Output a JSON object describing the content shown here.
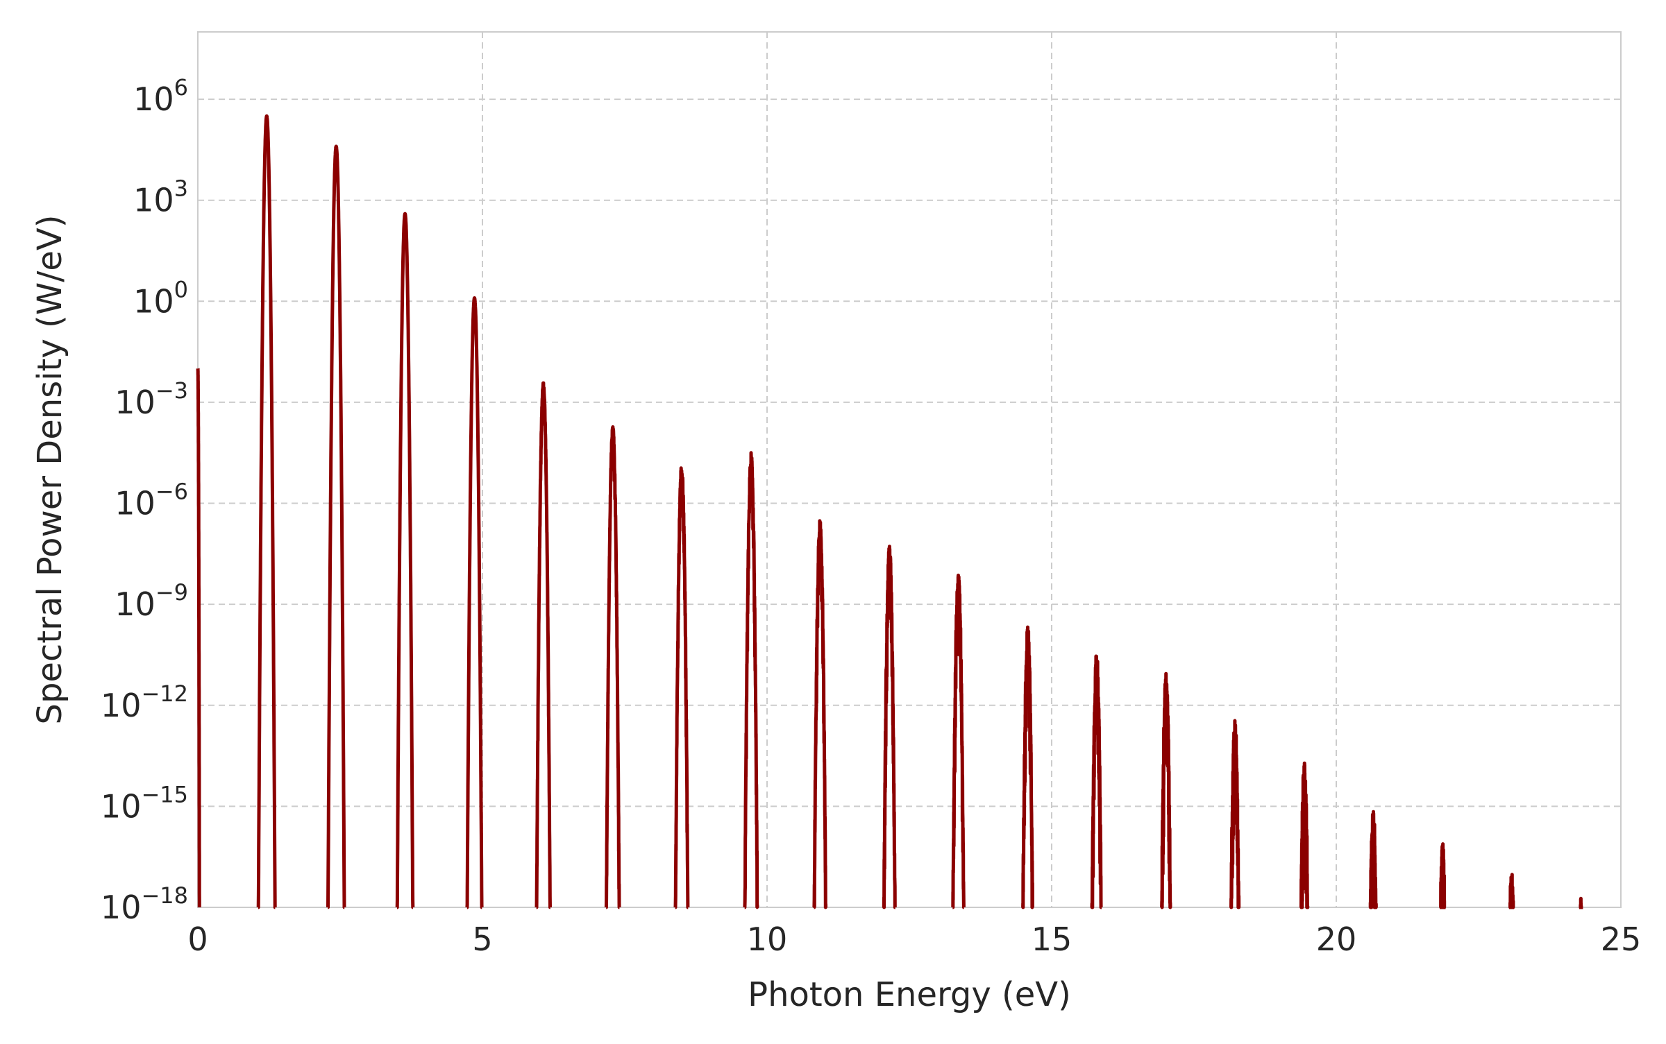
{
  "chart_data": {
    "type": "line",
    "xlabel": "Photon Energy (eV)",
    "ylabel": "Spectral Power Density (W/eV)",
    "xlim": [
      0,
      25
    ],
    "ylim_log10": [
      -18,
      8
    ],
    "y_scale": "log",
    "grid": true,
    "grid_style": "dashed",
    "line_color": "#8b0000",
    "x_ticks": [
      0,
      5,
      10,
      15,
      20,
      25
    ],
    "x_tick_labels": [
      "0",
      "5",
      "10",
      "15",
      "20",
      "25"
    ],
    "y_tick_exponents": [
      -18,
      -15,
      -12,
      -9,
      -6,
      -3,
      0,
      3,
      6
    ],
    "y_tick_labels": [
      {
        "base": "10",
        "exp": "−18"
      },
      {
        "base": "10",
        "exp": "−15"
      },
      {
        "base": "10",
        "exp": "−12"
      },
      {
        "base": "10",
        "exp": "−9"
      },
      {
        "base": "10",
        "exp": "−6"
      },
      {
        "base": "10",
        "exp": "−3"
      },
      {
        "base": "10",
        "exp": "0"
      },
      {
        "base": "10",
        "exp": "3"
      },
      {
        "base": "10",
        "exp": "6"
      }
    ],
    "series": [
      {
        "harmonic_spacing_eV": 1.21,
        "peaks": [
          {
            "x": 0.0,
            "log10_y": -2
          },
          {
            "x": 1.21,
            "log10_y": 5.5
          },
          {
            "x": 2.43,
            "log10_y": 4.6
          },
          {
            "x": 3.64,
            "log10_y": 2.6
          },
          {
            "x": 4.86,
            "log10_y": 0.1
          },
          {
            "x": 6.07,
            "log10_y": -2.4
          },
          {
            "x": 7.29,
            "log10_y": -3.7
          },
          {
            "x": 8.5,
            "log10_y": -4.8
          },
          {
            "x": 9.72,
            "log10_y": -4.5
          },
          {
            "x": 10.93,
            "log10_y": -6.5
          },
          {
            "x": 12.15,
            "log10_y": -7.2
          },
          {
            "x": 13.36,
            "log10_y": -7.9
          },
          {
            "x": 14.58,
            "log10_y": -9.6
          },
          {
            "x": 15.79,
            "log10_y": -10.4
          },
          {
            "x": 17.01,
            "log10_y": -11.0
          },
          {
            "x": 18.22,
            "log10_y": -12.4
          },
          {
            "x": 19.44,
            "log10_y": -13.6
          },
          {
            "x": 20.65,
            "log10_y": -15.0
          },
          {
            "x": 21.87,
            "log10_y": -16.1
          },
          {
            "x": 23.08,
            "log10_y": -16.9
          },
          {
            "x": 24.3,
            "log10_y": -17.7
          }
        ]
      }
    ]
  }
}
